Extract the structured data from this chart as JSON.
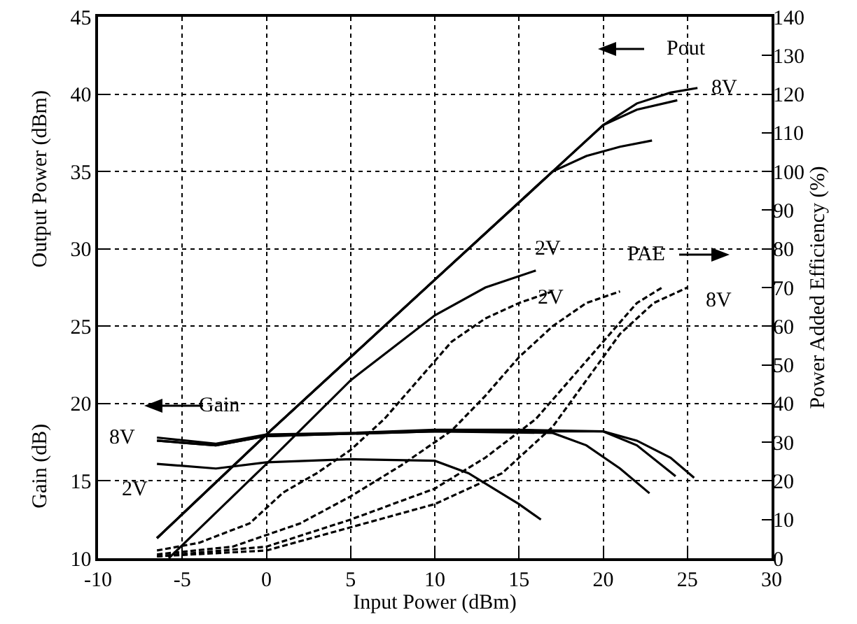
{
  "chart_data": {
    "type": "line",
    "xlabel": "Input Power (dBm)",
    "ylabel": "Output Power (dBm)",
    "y2label": "Power Added Efficiency (%)",
    "xlim": [
      -10,
      30
    ],
    "xticks": [
      -10,
      -5,
      0,
      5,
      10,
      15,
      20,
      25,
      30
    ],
    "ylim": [
      10,
      45
    ],
    "yticks": [
      10,
      15,
      20,
      25,
      30,
      35,
      40,
      45
    ],
    "y2lim": [
      0,
      140
    ],
    "y2ticks": [
      0,
      10,
      20,
      30,
      40,
      50,
      60,
      70,
      80,
      90,
      100,
      110,
      120,
      130,
      140
    ],
    "grid": true,
    "marker": "none",
    "series": [
      {
        "color": "#000000",
        "line_style": "solid",
        "x": [
          -6.5,
          0,
          10,
          17,
          20,
          22,
          24,
          25.6
        ],
        "values": [
          11.3,
          18,
          28,
          35,
          38,
          39.4,
          40.1,
          40.4
        ]
      },
      {
        "color": "#000000",
        "line_style": "solid",
        "x": [
          -6.5,
          0,
          10,
          17,
          20,
          22,
          24.4
        ],
        "values": [
          11.3,
          18,
          28,
          35,
          38,
          39,
          39.6
        ]
      },
      {
        "color": "#000000",
        "line_style": "solid",
        "x": [
          -6.5,
          0,
          10,
          17,
          19,
          21,
          22.9
        ],
        "values": [
          11.3,
          18,
          28,
          35,
          36,
          36.6,
          37
        ]
      },
      {
        "color": "#000000",
        "line_style": "solid",
        "x": [
          -5.8,
          0,
          5,
          10,
          13,
          16
        ],
        "values": [
          10,
          16.1,
          21.5,
          25.7,
          27.5,
          28.6
        ]
      },
      {
        "color": "#000000",
        "line_style": "solid",
        "x": [
          -6.5,
          -3,
          0,
          5,
          10,
          15,
          20,
          22,
          24,
          25.4
        ],
        "values": [
          17.8,
          17.4,
          18,
          18.1,
          18.3,
          18.3,
          18.2,
          17.6,
          16.5,
          15.2
        ]
      },
      {
        "color": "#000000",
        "line_style": "solid",
        "x": [
          -6.5,
          -3,
          0,
          10,
          20,
          22,
          24.3
        ],
        "values": [
          17.6,
          17.3,
          17.9,
          18.2,
          18.2,
          17.3,
          15.3
        ]
      },
      {
        "color": "#000000",
        "line_style": "solid",
        "x": [
          -6.5,
          -3,
          0,
          10,
          17,
          19,
          21,
          22.75
        ],
        "values": [
          17.6,
          17.3,
          17.9,
          18.2,
          18.1,
          17.3,
          15.8,
          14.2
        ]
      },
      {
        "color": "#000000",
        "line_style": "solid",
        "x": [
          -6.5,
          -3,
          0,
          5,
          10,
          12,
          15,
          16.3
        ],
        "values": [
          16.1,
          15.8,
          16.2,
          16.4,
          16.3,
          15.5,
          13.5,
          12.5
        ]
      },
      {
        "color": "#000000",
        "line_style": "dashed",
        "axis": "y2",
        "x": [
          -6.5,
          -4,
          -1,
          1,
          3,
          5,
          7,
          9,
          11,
          13,
          15,
          17
        ],
        "values": [
          2,
          4,
          9,
          17,
          22,
          28,
          36,
          46,
          56,
          62,
          66,
          69
        ]
      },
      {
        "color": "#000000",
        "line_style": "dashed",
        "axis": "y2",
        "x": [
          -6.5,
          -2,
          2,
          5,
          8,
          11,
          13,
          15,
          17,
          19,
          21
        ],
        "values": [
          1,
          3,
          9,
          16,
          24,
          33,
          42,
          52,
          60,
          66,
          69
        ]
      },
      {
        "color": "#000000",
        "line_style": "dashed",
        "axis": "y2",
        "x": [
          -6.5,
          0,
          5,
          10,
          13,
          16,
          18,
          20,
          22,
          23.5
        ],
        "values": [
          0.5,
          3,
          10,
          18,
          26,
          36,
          46,
          56,
          66,
          70
        ]
      },
      {
        "color": "#000000",
        "line_style": "dashed",
        "axis": "y2",
        "x": [
          -6.5,
          0,
          5,
          10,
          14,
          17,
          19,
          21,
          23,
          25
        ],
        "values": [
          0.5,
          2,
          8,
          14,
          22,
          34,
          46,
          58,
          66,
          70
        ]
      }
    ],
    "annotations": [
      "Pout",
      "Gain",
      "PAE",
      "8V",
      "2V",
      "2V",
      "8V",
      "8V",
      "2V",
      "Gain (dB)"
    ]
  }
}
